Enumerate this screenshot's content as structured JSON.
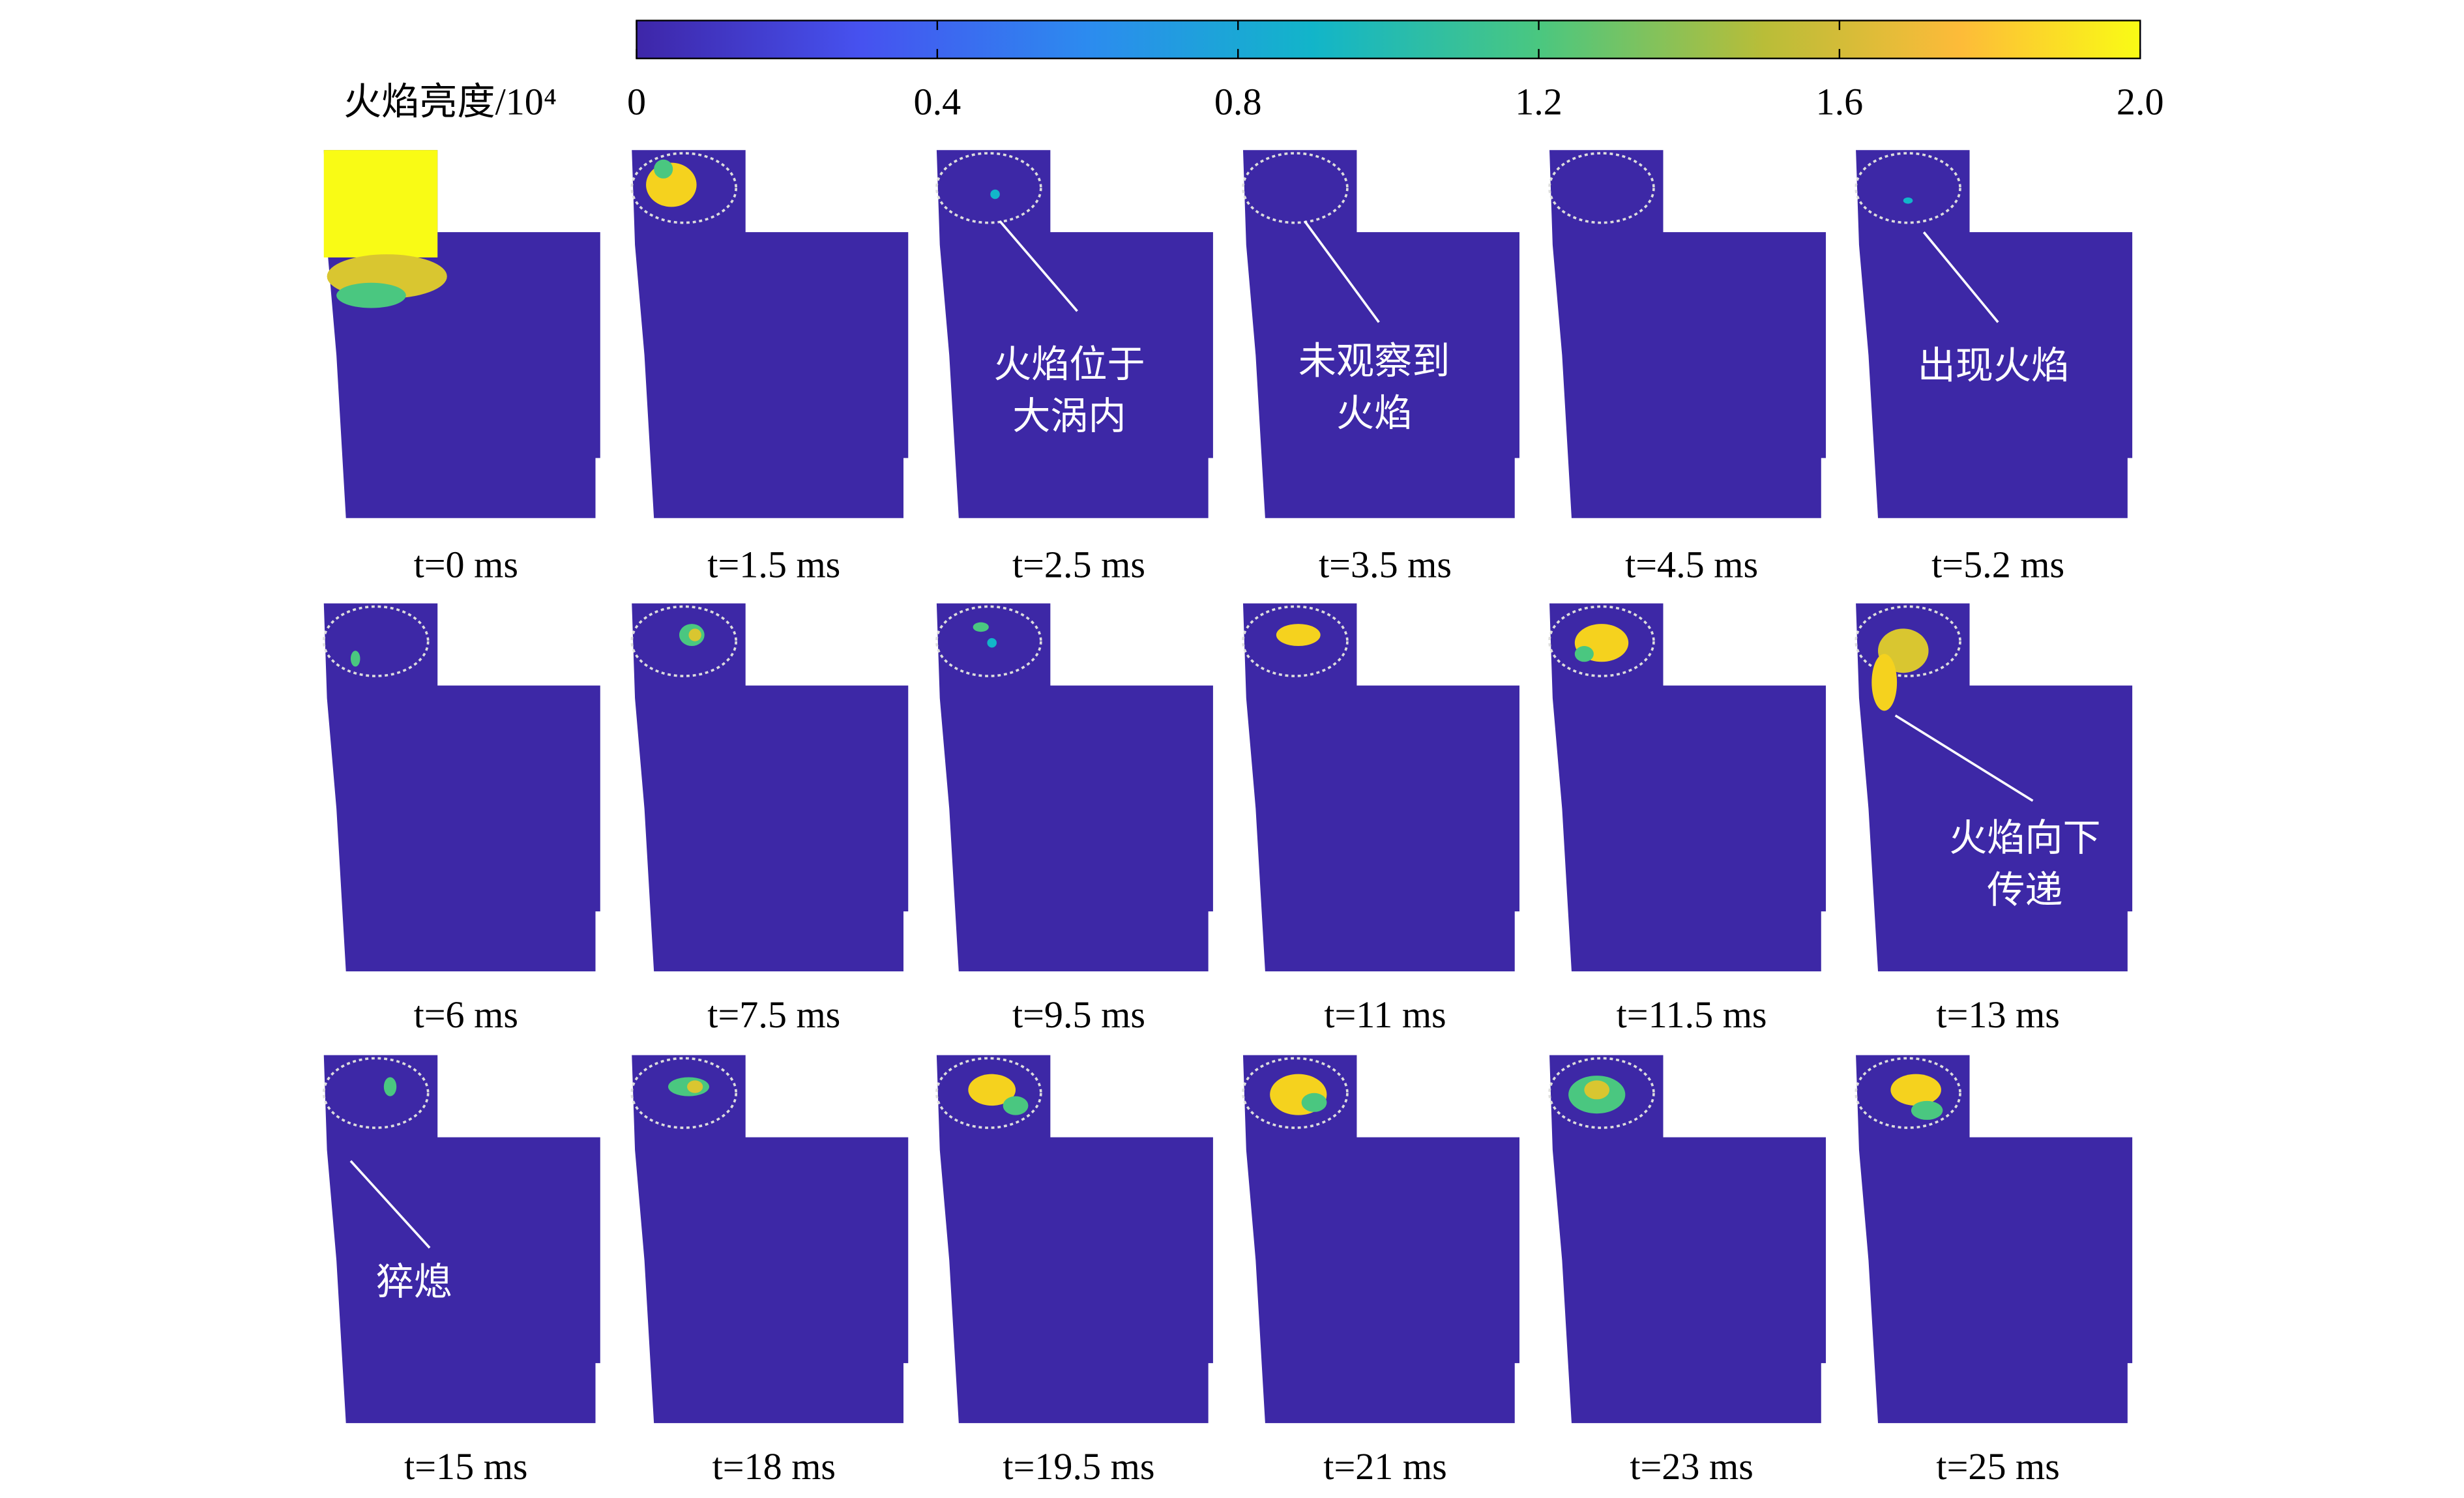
{
  "colorbar": {
    "title": "火焰亮度/10⁴",
    "ticks": [
      0,
      0.4,
      0.8,
      1.2,
      1.6,
      {
        "value": 2,
        "label": "2.0"
      }
    ],
    "range": [
      0,
      2
    ]
  },
  "panels": [
    {
      "label": "t=0 ms"
    },
    {
      "label": "t=1.5 ms"
    },
    {
      "label": "t=2.5 ms",
      "annotation": [
        "火焰位于",
        "大涡内"
      ]
    },
    {
      "label": "t=3.5 ms",
      "annotation": [
        "未观察到",
        "火焰"
      ]
    },
    {
      "label": "t=4.5 ms"
    },
    {
      "label": "t=5.2 ms",
      "annotation": [
        "出现火焰"
      ]
    },
    {
      "label": "t=6 ms"
    },
    {
      "label": "t=7.5 ms"
    },
    {
      "label": "t=9.5 ms"
    },
    {
      "label": "t=11 ms"
    },
    {
      "label": "t=11.5 ms"
    },
    {
      "label": "t=13 ms",
      "annotation": [
        "火焰向下",
        "传递"
      ]
    },
    {
      "label": "t=15 ms",
      "annotation": [
        "猝熄"
      ]
    },
    {
      "label": "t=18 ms"
    },
    {
      "label": "t=19.5 ms"
    },
    {
      "label": "t=21 ms"
    },
    {
      "label": "t=23 ms"
    },
    {
      "label": "t=25 ms"
    }
  ]
}
